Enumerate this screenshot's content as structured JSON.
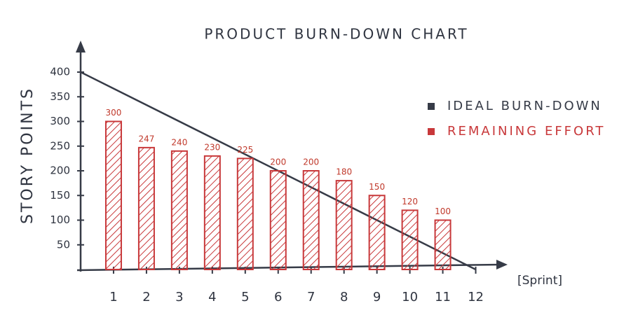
{
  "chart_data": {
    "type": "bar",
    "title": "PRODUCT BURN-DOWN CHART",
    "y_label": "STORY POINTS",
    "x_label": "[Sprint]",
    "xlim": [
      0,
      12.5
    ],
    "xticks": [
      1,
      2,
      3,
      4,
      5,
      6,
      7,
      8,
      9,
      10,
      11,
      12
    ],
    "ylim": [
      0,
      400
    ],
    "yticks": [
      50,
      100,
      150,
      200,
      250,
      300,
      350,
      400
    ],
    "legend": "upper right",
    "series": [
      {
        "name": "IDEAL BURN-DOWN",
        "type": "line",
        "color": "#363b47",
        "x": [
          0,
          12
        ],
        "values": [
          400,
          0
        ]
      },
      {
        "name": "REMAINING EFFORT",
        "type": "bar",
        "color": "#c8383a",
        "x": [
          1,
          2,
          3,
          4,
          5,
          6,
          7,
          8,
          9,
          10,
          11
        ],
        "values": [
          300,
          247,
          240,
          230,
          225,
          200,
          200,
          180,
          150,
          120,
          100
        ]
      }
    ]
  }
}
